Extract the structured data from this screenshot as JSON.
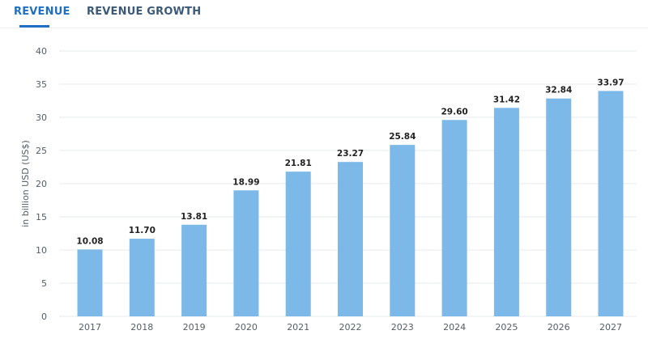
{
  "tabs": [
    {
      "label": "REVENUE",
      "active": true
    },
    {
      "label": "REVENUE GROWTH",
      "active": false
    }
  ],
  "colors": {
    "accent": "#1f6fc3",
    "bar": "#7cb9e8",
    "grid": "#e6e9ee"
  },
  "chart_data": {
    "type": "bar",
    "title": "",
    "xlabel": "",
    "ylabel": "in billion USD (US$)",
    "categories": [
      "2017",
      "2018",
      "2019",
      "2020",
      "2021",
      "2022",
      "2023",
      "2024",
      "2025",
      "2026",
      "2027"
    ],
    "values": [
      10.08,
      11.7,
      13.81,
      18.99,
      21.81,
      23.27,
      25.84,
      29.6,
      31.42,
      32.84,
      33.97
    ],
    "value_labels": [
      "10.08",
      "11.70",
      "13.81",
      "18.99",
      "21.81",
      "23.27",
      "25.84",
      "29.60",
      "31.42",
      "32.84",
      "33.97"
    ],
    "ylim": [
      0,
      40
    ],
    "yticks": [
      "0",
      "5",
      "10",
      "15",
      "20",
      "25",
      "30",
      "35",
      "40"
    ],
    "grid": true,
    "legend": "none"
  }
}
